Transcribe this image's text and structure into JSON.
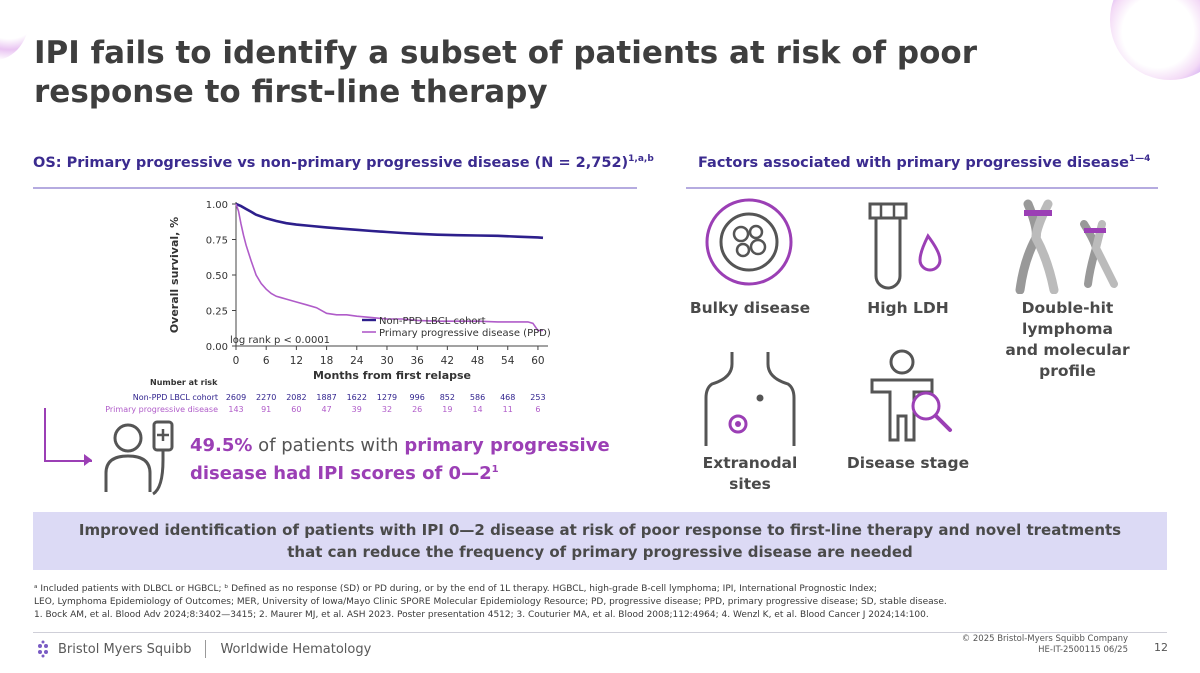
{
  "title": "IPI fails to identify a subset of patients at risk of poor response to first-line therapy",
  "left_section": {
    "heading": "OS: Primary progressive vs non-primary progressive disease (N = 2,752)",
    "heading_sup": "1,a,b"
  },
  "right_section": {
    "heading": "Factors associated with primary progressive disease",
    "heading_sup": "1—4"
  },
  "chart_data": {
    "type": "line",
    "xlabel": "Months from first relapse",
    "ylabel": "Overall survival, %",
    "x_ticks": [
      0,
      6,
      12,
      18,
      24,
      30,
      36,
      42,
      48,
      54,
      60
    ],
    "y_ticks": [
      "0.00",
      "0.25",
      "0.50",
      "0.75",
      "1.00"
    ],
    "xlim": [
      0,
      62
    ],
    "ylim": [
      0,
      1
    ],
    "annotation": "log rank p < 0.0001",
    "legend_position": "bottom-right",
    "series": [
      {
        "name": "Non-PPD LBCL cohort",
        "color": "#2d1f8c",
        "x": [
          0,
          1,
          2,
          3,
          4,
          6,
          8,
          10,
          12,
          15,
          18,
          21,
          24,
          27,
          30,
          33,
          36,
          40,
          44,
          48,
          52,
          56,
          60,
          61
        ],
        "y": [
          1.0,
          0.985,
          0.965,
          0.945,
          0.925,
          0.9,
          0.88,
          0.865,
          0.855,
          0.845,
          0.835,
          0.826,
          0.818,
          0.81,
          0.803,
          0.796,
          0.79,
          0.784,
          0.78,
          0.778,
          0.776,
          0.77,
          0.765,
          0.762
        ]
      },
      {
        "name": "Primary progressive disease (PPD)",
        "color": "#b05cc9",
        "x": [
          0,
          0.5,
          1,
          1.5,
          2,
          3,
          4,
          5,
          6,
          7,
          8,
          9,
          10,
          12,
          14,
          16,
          18,
          20,
          22,
          24,
          27,
          30,
          33,
          36,
          40,
          44,
          48,
          52,
          56,
          58,
          59,
          60,
          61
        ],
        "y": [
          1.0,
          0.95,
          0.86,
          0.78,
          0.71,
          0.6,
          0.5,
          0.44,
          0.4,
          0.37,
          0.35,
          0.34,
          0.33,
          0.31,
          0.29,
          0.27,
          0.23,
          0.22,
          0.22,
          0.21,
          0.2,
          0.19,
          0.19,
          0.18,
          0.175,
          0.175,
          0.175,
          0.17,
          0.17,
          0.17,
          0.16,
          0.11,
          0.11
        ]
      }
    ]
  },
  "risk_table": {
    "title": "Number at risk",
    "rows": [
      {
        "label": "Non-PPD LBCL cohort",
        "color": "#2d1f8c",
        "values": [
          "2609",
          "2270",
          "2082",
          "1887",
          "1622",
          "1279",
          "996",
          "852",
          "586",
          "468",
          "253"
        ]
      },
      {
        "label": "Primary progressive disease",
        "color": "#b05cc9",
        "values": [
          "143",
          "91",
          "60",
          "47",
          "39",
          "32",
          "26",
          "19",
          "14",
          "11",
          "6"
        ]
      }
    ]
  },
  "callout": {
    "pct": "49.5%",
    "text1": " of patients with ",
    "hl1": "primary progressive",
    "hl2": "disease had IPI scores of 0—2",
    "sup": "1"
  },
  "factors": {
    "bulky": "Bulky disease",
    "ldh": "High LDH",
    "dh_line1": "Double-hit lymphoma",
    "dh_line2": "and molecular profile",
    "extra_line1": "Extranodal",
    "extra_line2": "sites",
    "stage": "Disease stage"
  },
  "banner": "Improved identification of patients with IPI 0—2 disease at risk of poor response to first-line therapy and novel treatments that can reduce the frequency of primary progressive disease are needed",
  "footnotes": [
    "ᵃ Included patients with DLBCL or HGBCL; ᵇ Defined as no response (SD) or PD during, or by the end of 1L therapy. HGBCL, high-grade B-cell lymphoma; IPI, International Prognostic Index;",
    "LEO, Lymphoma Epidemiology of Outcomes; MER, University of Iowa/Mayo Clinic SPORE Molecular Epidemiology Resource; PD, progressive disease; PPD, primary progressive disease; SD, stable disease.",
    "1. Bock AM, et al. Blood Adv 2024;8:3402—3415; 2. Maurer MJ, et al. ASH 2023. Poster presentation 4512; 3. Couturier MA, et al. Blood 2008;112:4964; 4. Wenzl K, et al. Blood Cancer J 2024;14:100."
  ],
  "footer": {
    "company": "Bristol Myers Squibb",
    "division": "Worldwide Hematology",
    "copyright": "© 2025 Bristol-Myers Squibb Company",
    "code": "HE-IT-2500115 06/25",
    "page": "12"
  }
}
